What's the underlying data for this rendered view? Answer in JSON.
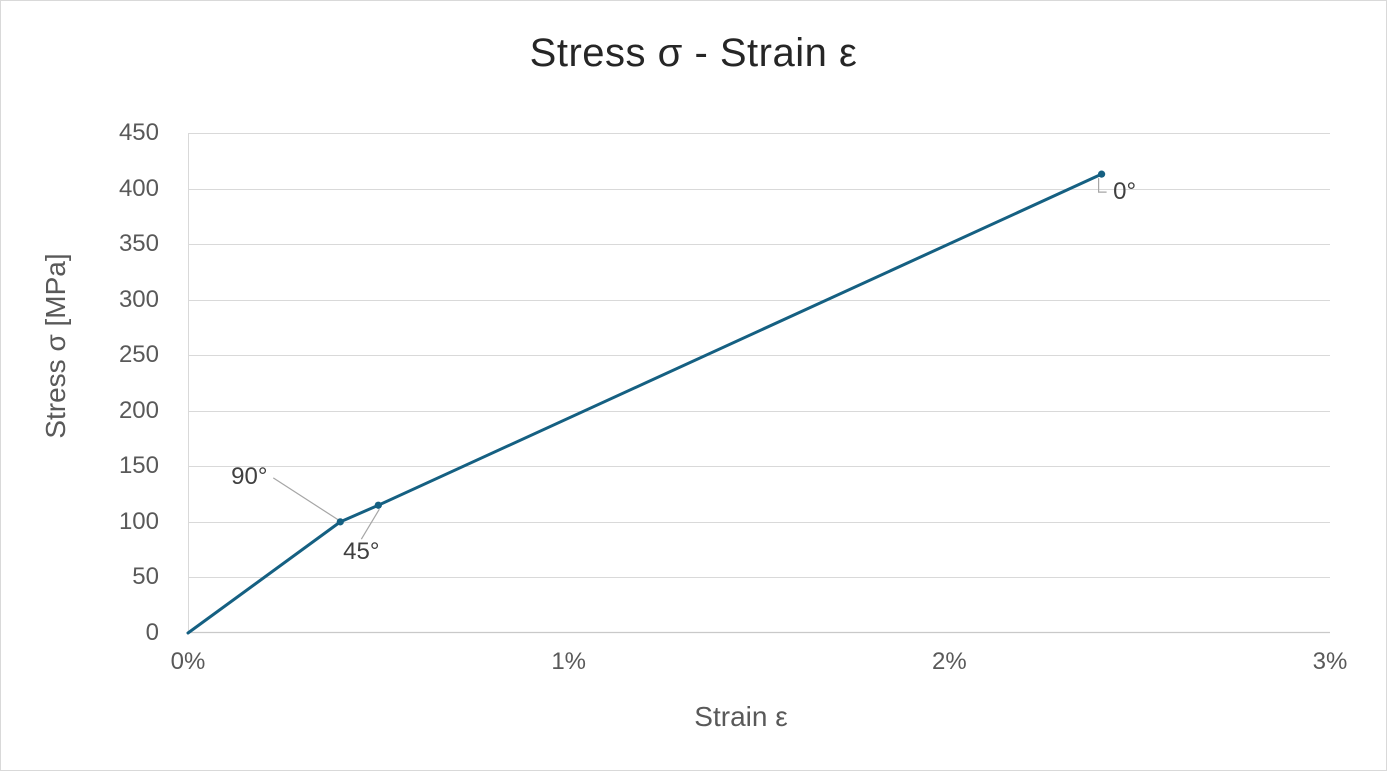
{
  "window": {
    "background": "#ffffff",
    "border_color": "#d9d9d9"
  },
  "colors": {
    "series_line": "#156082",
    "marker": "#156082",
    "gridline": "#d9d9d9",
    "axis_line": "#c9c9c9",
    "leader_line": "#a6a6a6",
    "title_text": "#262626",
    "tick_text": "#595959",
    "data_label_text": "#404040"
  },
  "chart_data": {
    "type": "line",
    "title": "Stress σ - Strain ε",
    "xlabel": "Strain ε",
    "ylabel": "Stress σ [MPa]",
    "xlim": [
      0,
      3
    ],
    "ylim": [
      0,
      450
    ],
    "x_tick_values": [
      0,
      1,
      2,
      3
    ],
    "x_tick_labels": [
      "0%",
      "1%",
      "2%",
      "3%"
    ],
    "y_tick_values": [
      0,
      50,
      100,
      150,
      200,
      250,
      300,
      350,
      400,
      450
    ],
    "y_tick_labels": [
      "0",
      "50",
      "100",
      "150",
      "200",
      "250",
      "300",
      "350",
      "400",
      "450"
    ],
    "grid": "horizontal-major",
    "legend": "none",
    "series": [
      {
        "name": "stress-strain-curve",
        "color": "#156082",
        "x": [
          0,
          0.4,
          0.5,
          2.4
        ],
        "y": [
          0,
          100,
          115,
          413
        ]
      }
    ],
    "annotations": [
      {
        "label": "90°",
        "x": 0.4,
        "y": 100
      },
      {
        "label": "45°",
        "x": 0.5,
        "y": 115
      },
      {
        "label": "0°",
        "x": 2.4,
        "y": 413
      }
    ]
  }
}
